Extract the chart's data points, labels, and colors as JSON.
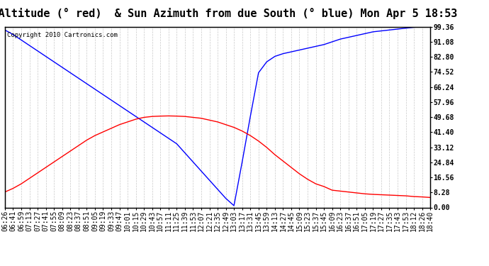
{
  "title": "Sun Altitude (° red)  & Sun Azimuth from due South (° blue) Mon Apr 5 18:53",
  "copyright_text": "Copyright 2010 Cartronics.com",
  "y_max": 99.36,
  "y_min": 0.0,
  "y_ticks": [
    0.0,
    8.28,
    16.56,
    24.84,
    33.12,
    41.4,
    49.68,
    57.96,
    66.24,
    74.52,
    82.8,
    91.08,
    99.36
  ],
  "x_labels": [
    "06:26",
    "06:41",
    "06:59",
    "07:13",
    "07:27",
    "07:41",
    "07:55",
    "08:09",
    "08:23",
    "08:37",
    "08:51",
    "09:05",
    "09:19",
    "09:33",
    "09:47",
    "10:01",
    "10:15",
    "10:29",
    "10:43",
    "10:57",
    "11:11",
    "11:25",
    "11:39",
    "11:53",
    "12:07",
    "12:21",
    "12:35",
    "12:49",
    "13:03",
    "13:17",
    "13:31",
    "13:45",
    "13:59",
    "14:13",
    "14:27",
    "14:45",
    "15:09",
    "15:23",
    "15:37",
    "15:45",
    "16:09",
    "16:23",
    "16:37",
    "16:51",
    "17:05",
    "17:19",
    "17:27",
    "17:35",
    "17:43",
    "17:53",
    "18:12",
    "18:26",
    "18:40"
  ],
  "blue_y": [
    97.5,
    95.0,
    92.0,
    89.0,
    86.0,
    83.0,
    80.0,
    77.0,
    74.0,
    71.0,
    68.0,
    65.0,
    62.0,
    59.0,
    56.0,
    53.0,
    50.0,
    47.0,
    44.0,
    41.0,
    38.0,
    35.0,
    30.0,
    25.0,
    20.0,
    15.0,
    10.0,
    5.0,
    1.0,
    25.0,
    50.0,
    74.0,
    80.0,
    83.0,
    84.5,
    85.5,
    86.5,
    87.5,
    88.5,
    89.5,
    91.0,
    92.5,
    93.5,
    94.5,
    95.5,
    96.5,
    97.0,
    97.5,
    98.0,
    98.5,
    99.0,
    99.2,
    99.36
  ],
  "red_y": [
    8.5,
    10.5,
    13.0,
    16.0,
    19.0,
    22.0,
    25.0,
    28.0,
    31.0,
    34.0,
    37.0,
    39.5,
    41.5,
    43.5,
    45.5,
    47.0,
    48.5,
    49.5,
    50.0,
    50.2,
    50.3,
    50.2,
    50.0,
    49.5,
    49.0,
    48.0,
    47.0,
    45.5,
    44.0,
    42.0,
    39.5,
    36.5,
    33.0,
    29.0,
    25.5,
    22.0,
    18.5,
    15.5,
    13.0,
    11.5,
    9.5,
    9.0,
    8.5,
    8.0,
    7.5,
    7.2,
    7.0,
    6.8,
    6.6,
    6.4,
    6.0,
    5.8,
    5.5
  ],
  "blue_line_color": "#0000FF",
  "red_line_color": "#FF0000",
  "background_color": "#FFFFFF",
  "grid_color": "#BBBBBB",
  "title_fontsize": 11,
  "tick_fontsize": 7,
  "copyright_fontsize": 6.5
}
